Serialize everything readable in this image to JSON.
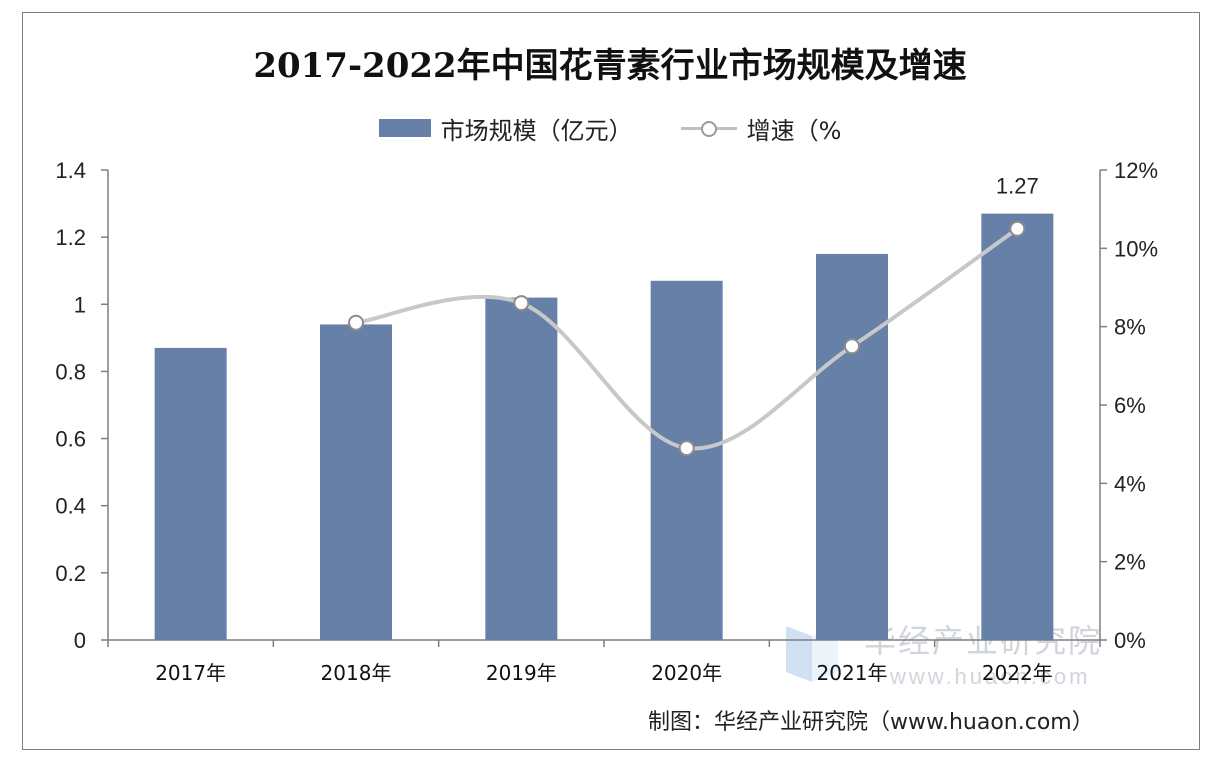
{
  "chart_data": {
    "type": "bar",
    "title": "2017-2022年中国花青素行业市场规模及增速",
    "categories": [
      "2017年",
      "2018年",
      "2019年",
      "2020年",
      "2021年",
      "2022年"
    ],
    "series": [
      {
        "name": "市场规模（亿元）",
        "type": "bar",
        "axis": "left",
        "values": [
          0.87,
          0.94,
          1.02,
          1.07,
          1.15,
          1.27
        ]
      },
      {
        "name": "增速（%",
        "type": "line",
        "axis": "right",
        "values": [
          null,
          8.1,
          8.6,
          4.9,
          7.5,
          10.5
        ]
      }
    ],
    "data_labels": [
      {
        "category": "2022年",
        "series": "市场规模（亿元）",
        "text": "1.27"
      }
    ],
    "y_left": {
      "range": [
        0,
        1.4
      ],
      "ticks": [
        "0",
        "0.2",
        "0.4",
        "0.6",
        "0.8",
        "1",
        "1.2",
        "1.4"
      ]
    },
    "y_right": {
      "range": [
        0,
        12
      ],
      "ticks": [
        "0%",
        "2%",
        "4%",
        "6%",
        "8%",
        "10%",
        "12%"
      ]
    },
    "legend_position": "top-center",
    "grid": false,
    "colors": {
      "bar": "#6680a8",
      "line": "#c8c8c8",
      "marker_edge": "#8c8c8c",
      "axis": "#7f7f7f"
    }
  },
  "source": "制图：华经产业研究院（www.huaon.com）",
  "watermark": {
    "name": "华经产业研究院",
    "url": "www.huaon.com"
  }
}
